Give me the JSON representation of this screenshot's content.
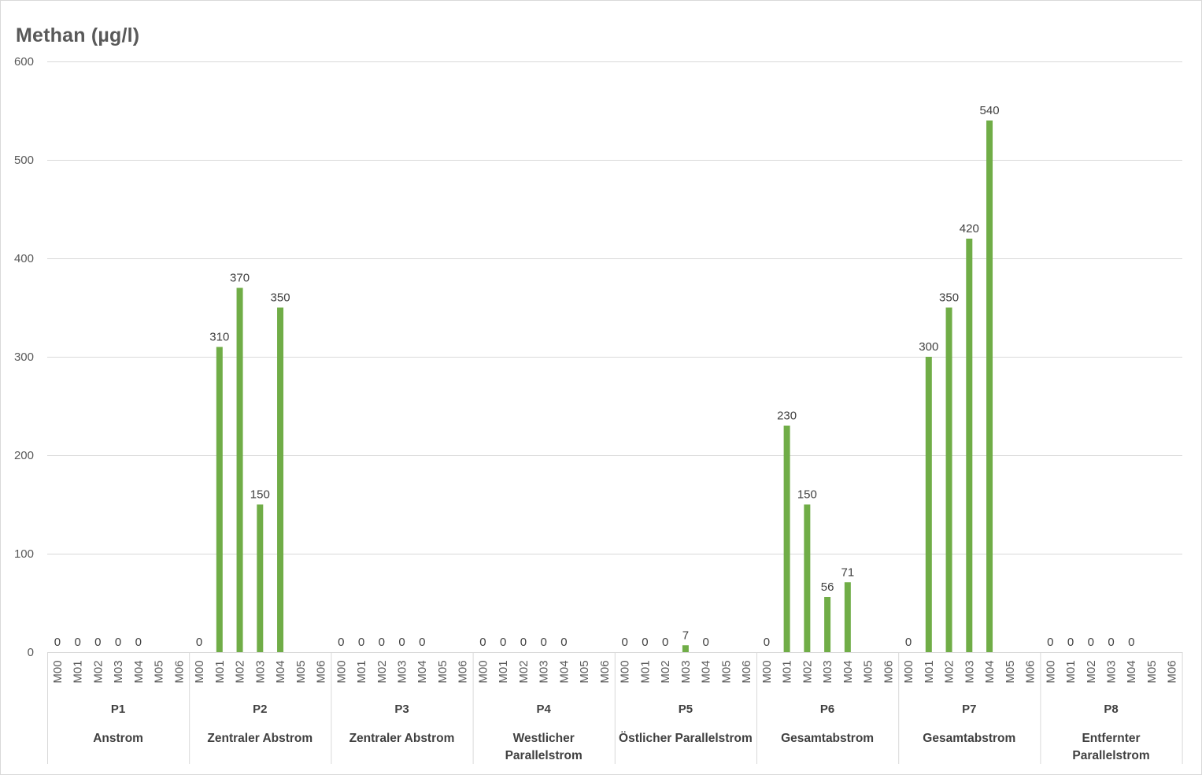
{
  "chart_data": {
    "type": "bar",
    "title": "Methan (µg/l)",
    "xlabel": "",
    "ylabel": "",
    "ylim": [
      0,
      600
    ],
    "yticks": [
      0,
      100,
      200,
      300,
      400,
      500,
      600
    ],
    "gridlines": true,
    "legend": "none",
    "bar_color": "#70ad47",
    "months": [
      "M00",
      "M01",
      "M02",
      "M03",
      "M04",
      "M05",
      "M06"
    ],
    "groups": [
      {
        "site": "P1",
        "description": [
          "Anstrom"
        ],
        "values": [
          0,
          0,
          0,
          0,
          0,
          null,
          null
        ]
      },
      {
        "site": "P2",
        "description": [
          "Zentraler Abstrom"
        ],
        "values": [
          0,
          310,
          370,
          150,
          350,
          null,
          null
        ]
      },
      {
        "site": "P3",
        "description": [
          "Zentraler Abstrom"
        ],
        "values": [
          0,
          0,
          0,
          0,
          0,
          null,
          null
        ]
      },
      {
        "site": "P4",
        "description": [
          "Westlicher",
          "Parallelstrom"
        ],
        "values": [
          0,
          0,
          0,
          0,
          0,
          null,
          null
        ]
      },
      {
        "site": "P5",
        "description": [
          "Östlicher Parallelstrom"
        ],
        "values": [
          0,
          0,
          0,
          7,
          0,
          null,
          null
        ]
      },
      {
        "site": "P6",
        "description": [
          "Gesamtabstrom"
        ],
        "values": [
          0,
          230,
          150,
          56,
          71,
          null,
          null
        ]
      },
      {
        "site": "P7",
        "description": [
          "Gesamtabstrom"
        ],
        "values": [
          0,
          300,
          350,
          420,
          540,
          null,
          null
        ]
      },
      {
        "site": "P8",
        "description": [
          "Entfernter",
          "Parallelstrom"
        ],
        "values": [
          0,
          0,
          0,
          0,
          0,
          null,
          null
        ]
      }
    ]
  }
}
